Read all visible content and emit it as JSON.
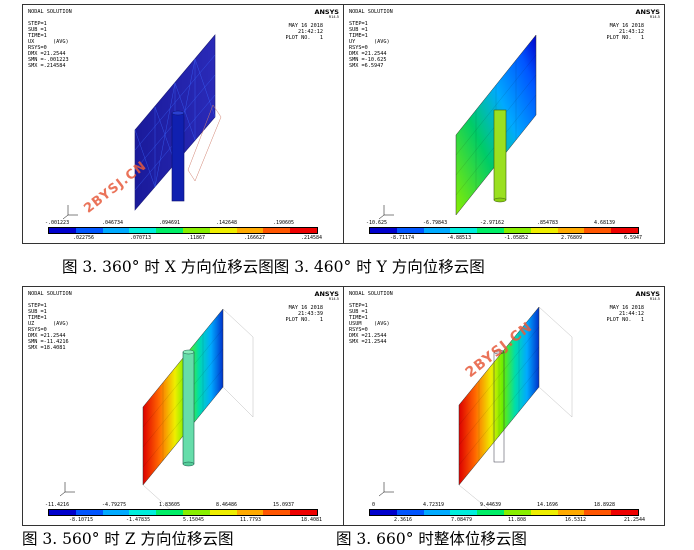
{
  "brand": "ANSYS",
  "version": "R14.5",
  "colormap": [
    "#0000cc",
    "#0055ff",
    "#00aaff",
    "#00eedd",
    "#00ee66",
    "#88ee00",
    "#eeee00",
    "#ffaa00",
    "#ff5500",
    "#ee0000"
  ],
  "panels": [
    {
      "info": "NODAL SOLUTION\n\nSTEP=1\nSUB =1\nTIME=1\nUX      (AVG)\nRSYS=0\nDMX =21.2544\nSMN =-.001223\nSMX =.214584",
      "date": "MAY 16 2018\n21:42:12\nPLOT NO.   1",
      "labels_top": [
        "-.001223",
        ".046734",
        ".094691",
        ".142648",
        ".190605"
      ],
      "labels_bot": [
        ".022756",
        ".070713",
        ".11867",
        ".166627",
        ".214584"
      ],
      "watermark": "2BYSJ.CN"
    },
    {
      "info": "NODAL SOLUTION\n\nSTEP=1\nSUB =1\nTIME=1\nUY      (AVG)\nRSYS=0\nDMX =21.2544\nSMN =-10.625\nSMX =6.5947",
      "date": "MAY 16 2018\n21:43:12\nPLOT NO.   1",
      "labels_top": [
        "-10.625",
        "-6.79843",
        "-2.97162",
        ".854783",
        "4.68139"
      ],
      "labels_bot": [
        "-8.71174",
        "-4.88513",
        "-1.05852",
        "2.76809",
        "6.5947"
      ],
      "watermark": ""
    },
    {
      "info": "NODAL SOLUTION\n\nSTEP=1\nSUB =1\nTIME=1\nUZ      (AVG)\nRSYS=0\nDMX =21.2544\nSMN =-11.4216\nSMX =18.4081",
      "date": "MAY 16 2018\n21:43:39\nPLOT NO.   1",
      "labels_top": [
        "-11.4216",
        "-4.79275",
        "1.83605",
        "8.46486",
        "15.0937"
      ],
      "labels_bot": [
        "-8.10715",
        "-1.47835",
        "5.15045",
        "11.7793",
        "18.4081"
      ],
      "watermark": ""
    },
    {
      "info": "NODAL SOLUTION\n\nSTEP=1\nSUB =1\nTIME=1\nUSUM    (AVG)\nRSYS=0\nDMX =21.2544\nSMX =21.2544",
      "date": "MAY 16 2018\n21:44:12\nPLOT NO.   1",
      "labels_top": [
        "0",
        "4.72319",
        "9.44639",
        "14.1696",
        "18.8928"
      ],
      "labels_bot": [
        "2.3616",
        "7.08479",
        "11.808",
        "16.5312",
        "21.2544"
      ],
      "watermark": "2BYSJ.CN"
    }
  ],
  "captions": {
    "row1": "图 3. 360° 时 X 方向位移云图图 3. 460° 时 Y 方向位移云图",
    "row2_left": "图 3. 560° 时 Z 方向位移云图",
    "row2_right": "图 3. 660° 时整体位移云图"
  }
}
